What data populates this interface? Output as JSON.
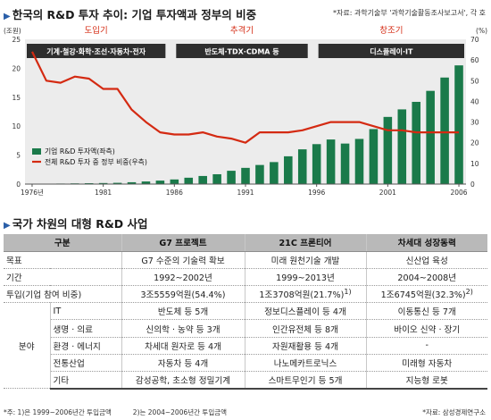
{
  "header": {
    "title": "한국의 R&D 투자 추이: 기업 투자액과 정부의 비중",
    "source": "*자료: 과학기술부 '과학기술활동조사보고서', 각 호"
  },
  "chart_data": {
    "type": "bar+line",
    "x": [
      1976,
      1977,
      1978,
      1979,
      1980,
      1981,
      1982,
      1983,
      1984,
      1985,
      1986,
      1987,
      1988,
      1989,
      1990,
      1991,
      1992,
      1993,
      1994,
      1995,
      1996,
      1997,
      1998,
      1999,
      2000,
      2001,
      2002,
      2003,
      2004,
      2005,
      2006
    ],
    "x_ticks": [
      1976,
      1981,
      1986,
      1991,
      1996,
      2001,
      2006
    ],
    "x_tick_labels": [
      "1976년",
      "1981",
      "1986",
      "1991",
      "1996",
      "2001",
      "2006"
    ],
    "y_left_label": "(조원)",
    "y_left_lim": [
      0,
      25
    ],
    "y_left_ticks": [
      0,
      5,
      10,
      15,
      20,
      25
    ],
    "y_right_label": "(%)",
    "y_right_lim": [
      0,
      70
    ],
    "y_right_ticks": [
      0,
      10,
      20,
      30,
      40,
      50,
      60,
      70
    ],
    "legend_position": "left",
    "series": [
      {
        "name": "기업 R&D 투자액(좌측)",
        "axis": "left",
        "kind": "bar",
        "color": "#1a7a4a",
        "values": [
          0.04,
          0.06,
          0.09,
          0.12,
          0.15,
          0.18,
          0.22,
          0.32,
          0.45,
          0.6,
          0.8,
          1.1,
          1.4,
          1.7,
          2.3,
          2.8,
          3.3,
          3.8,
          4.8,
          6.0,
          6.9,
          7.7,
          7.0,
          7.8,
          9.5,
          11.6,
          12.9,
          14.2,
          16.1,
          18.4,
          20.5
        ]
      },
      {
        "name": "전체 R&D 투자 중 정부 비중(우측)",
        "axis": "right",
        "kind": "line",
        "color": "#d42a12",
        "values": [
          64,
          50,
          49,
          52,
          51,
          46,
          46,
          36,
          30,
          25,
          24,
          24,
          25,
          23,
          22,
          20,
          25,
          25,
          25,
          26,
          28,
          30,
          30,
          30,
          28,
          26,
          26,
          25,
          25,
          25,
          25
        ]
      }
    ],
    "eras": [
      {
        "name": "도입기",
        "desc": "기계·철강·화학·조선·자동차·전자",
        "from": 1976,
        "to": 1985.5
      },
      {
        "name": "추격기",
        "desc": "반도체·TDX·CDMA 등",
        "from": 1986.5,
        "to": 1995.5
      },
      {
        "name": "창조기",
        "desc": "디스플레이·IT",
        "from": 1996.5,
        "to": 2006.5
      }
    ]
  },
  "section2": {
    "title": "국가 차원의 대형 R&D 사업"
  },
  "table": {
    "headers": [
      "구분",
      "G7 프로젝트",
      "21C 프론티어",
      "차세대 성장동력"
    ],
    "rows": [
      {
        "label": "목표",
        "cells": [
          "G7 수준의 기술력 확보",
          "미래 원천기술 개발",
          "신산업 육성"
        ]
      },
      {
        "label": "기간",
        "cells": [
          "1992~2002년",
          "1999~2013년",
          "2004~2008년"
        ]
      },
      {
        "label": "투입(기업 참여 비중)",
        "cells": [
          "3조5559억원(54.4%)",
          "1조3708억원(21.7%)",
          "1조6745억원(32.3%)"
        ],
        "marks": [
          "",
          "1)",
          "2)"
        ]
      }
    ],
    "field_label": "분야",
    "field_rows": [
      {
        "label": "IT",
        "cells": [
          "반도체 등 5개",
          "정보디스플레이 등 4개",
          "이동통신 등 7개"
        ]
      },
      {
        "label": "생명 · 의료",
        "cells": [
          "신의학 · 농약 등 3개",
          "인간유전체 등 8개",
          "바이오 신약 · 장기"
        ]
      },
      {
        "label": "환경 · 에너지",
        "cells": [
          "차세대 원자로 등 4개",
          "자원재활용 등 4개",
          "-"
        ]
      },
      {
        "label": "전통산업",
        "cells": [
          "자동차 등 4개",
          "나노메카트로닉스",
          "미래형 자동차"
        ]
      },
      {
        "label": "기타",
        "cells": [
          "감성공학, 초소형 정밀기계",
          "스마트무인기 등 5개",
          "지능형 로봇"
        ]
      }
    ]
  },
  "footer": {
    "note1": "*주: 1)은 1999~2006년간 투입금액",
    "note2": "2)는 2004~2006년간 투입금액",
    "source": "*자료: 삼성경제연구소"
  }
}
